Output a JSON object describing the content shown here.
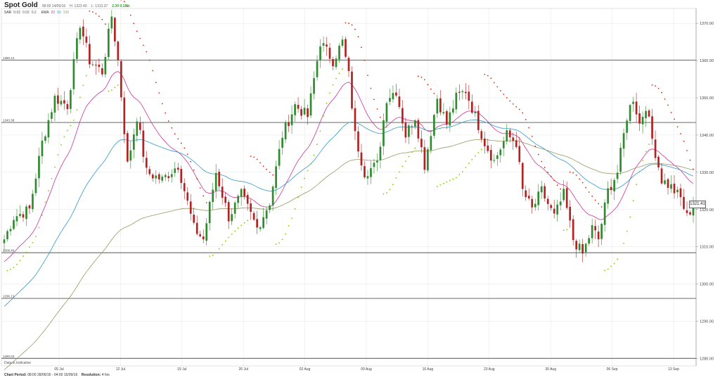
{
  "header": {
    "title": "Spot Gold",
    "range": "08:09 14/09/16",
    "high": "H: 1322.40",
    "low": "L: 1313.37",
    "change": "2.30 0.18%",
    "indicators": [
      {
        "name": "SAR",
        "values": [
          "0.02",
          "0.02",
          "0.2"
        ]
      },
      {
        "name": "EMA",
        "values": [
          "20",
          "50",
          "100"
        ]
      }
    ]
  },
  "footer": {
    "period_label": "Chart Period:",
    "period_value": "08:00 28/06/16 - 04:00 15/09/16",
    "resolution_label": "Resolution:",
    "resolution_value": "4 hrs"
  },
  "note": "Data is Indicative",
  "current_price": "1321.41",
  "colors": {
    "up": "#2e8b2e",
    "down": "#b22222",
    "ema20": "#cc3399",
    "ema50": "#3399cc",
    "ema100": "#999966",
    "sar_up": "#7cd000",
    "sar_down": "#ee2200",
    "grid": "#e6e6e6",
    "level": "#555555"
  },
  "chart_data": {
    "type": "candlestick",
    "y_ticks": [
      1280,
      1290,
      1300,
      1310,
      1320,
      1330,
      1340,
      1350,
      1360,
      1370
    ],
    "ylim": [
      1278,
      1374
    ],
    "x_ticks": [
      "05 Jul",
      "12 Jul",
      "19 Jul",
      "26 Jul",
      "02 Aug",
      "09 Aug",
      "16 Aug",
      "23 Aug",
      "30 Aug",
      "06 Sep",
      "13 Sep"
    ],
    "levels": [
      {
        "label": "1360.14",
        "value": 1360.14
      },
      {
        "label": "1343.38",
        "value": 1343.38
      },
      {
        "label": "1308.40",
        "value": 1308.4
      },
      {
        "label": "1296.13",
        "value": 1296.13
      },
      {
        "label": "1280.03",
        "value": 1280.03
      }
    ],
    "anchors": [
      [
        0,
        1312
      ],
      [
        3,
        1318
      ],
      [
        8,
        1320
      ],
      [
        12,
        1338
      ],
      [
        16,
        1350
      ],
      [
        20,
        1348
      ],
      [
        24,
        1370
      ],
      [
        27,
        1360
      ],
      [
        31,
        1357
      ],
      [
        34,
        1372
      ],
      [
        36,
        1360
      ],
      [
        39,
        1332
      ],
      [
        42,
        1345
      ],
      [
        45,
        1330
      ],
      [
        50,
        1328
      ],
      [
        55,
        1332
      ],
      [
        60,
        1315
      ],
      [
        63,
        1312
      ],
      [
        67,
        1330
      ],
      [
        71,
        1318
      ],
      [
        75,
        1324
      ],
      [
        80,
        1315
      ],
      [
        84,
        1322
      ],
      [
        88,
        1340
      ],
      [
        92,
        1348
      ],
      [
        96,
        1345
      ],
      [
        100,
        1365
      ],
      [
        104,
        1360
      ],
      [
        107,
        1365
      ],
      [
        109,
        1356
      ],
      [
        111,
        1340
      ],
      [
        114,
        1330
      ],
      [
        118,
        1332
      ],
      [
        121,
        1350
      ],
      [
        124,
        1352
      ],
      [
        127,
        1340
      ],
      [
        130,
        1345
      ],
      [
        133,
        1332
      ],
      [
        137,
        1350
      ],
      [
        140,
        1343
      ],
      [
        143,
        1350
      ],
      [
        146,
        1352
      ],
      [
        149,
        1345
      ],
      [
        152,
        1338
      ],
      [
        155,
        1333
      ],
      [
        159,
        1340
      ],
      [
        162,
        1338
      ],
      [
        164,
        1325
      ],
      [
        167,
        1320
      ],
      [
        170,
        1325
      ],
      [
        174,
        1318
      ],
      [
        177,
        1324
      ],
      [
        180,
        1312
      ],
      [
        183,
        1308
      ],
      [
        186,
        1315
      ],
      [
        188,
        1312
      ],
      [
        191,
        1325
      ],
      [
        194,
        1330
      ],
      [
        197,
        1345
      ],
      [
        199,
        1350
      ],
      [
        201,
        1343
      ],
      [
        203,
        1348
      ],
      [
        205,
        1339
      ],
      [
        208,
        1328
      ],
      [
        211,
        1326
      ],
      [
        214,
        1323
      ],
      [
        216,
        1318
      ],
      [
        218,
        1321.41
      ]
    ],
    "candle_count": 219,
    "last_close": 1321.41
  }
}
